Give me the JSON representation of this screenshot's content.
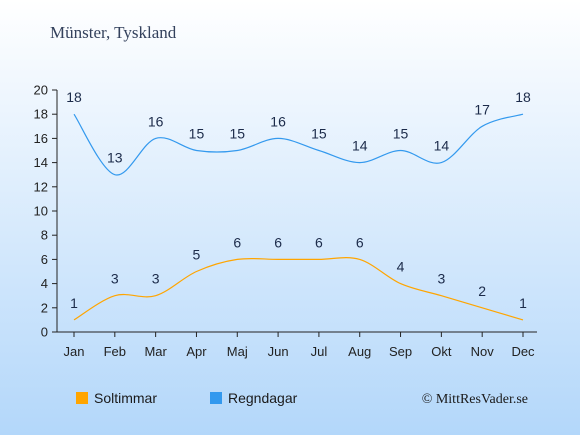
{
  "chart_data": {
    "type": "line",
    "title": "Münster, Tyskland",
    "categories": [
      "Jan",
      "Feb",
      "Mar",
      "Apr",
      "Maj",
      "Jun",
      "Jul",
      "Aug",
      "Sep",
      "Okt",
      "Nov",
      "Dec"
    ],
    "ylim": [
      0,
      20
    ],
    "yticks": [
      0,
      2,
      4,
      6,
      8,
      10,
      12,
      14,
      16,
      18,
      20
    ],
    "grid": false,
    "legend_position": "bottom-left",
    "series": [
      {
        "name": "Soltimmar",
        "color": "#ffa500",
        "values": [
          1,
          3,
          3,
          5,
          6,
          6,
          6,
          6,
          4,
          3,
          2,
          1
        ]
      },
      {
        "name": "Regndagar",
        "color": "#3399ee",
        "values": [
          18,
          13,
          16,
          15,
          15,
          16,
          15,
          14,
          15,
          14,
          17,
          18
        ]
      }
    ],
    "background": {
      "top": "#ffffff",
      "bottom": "#b3d7fa"
    },
    "copyright": "© MittResVader.se"
  }
}
